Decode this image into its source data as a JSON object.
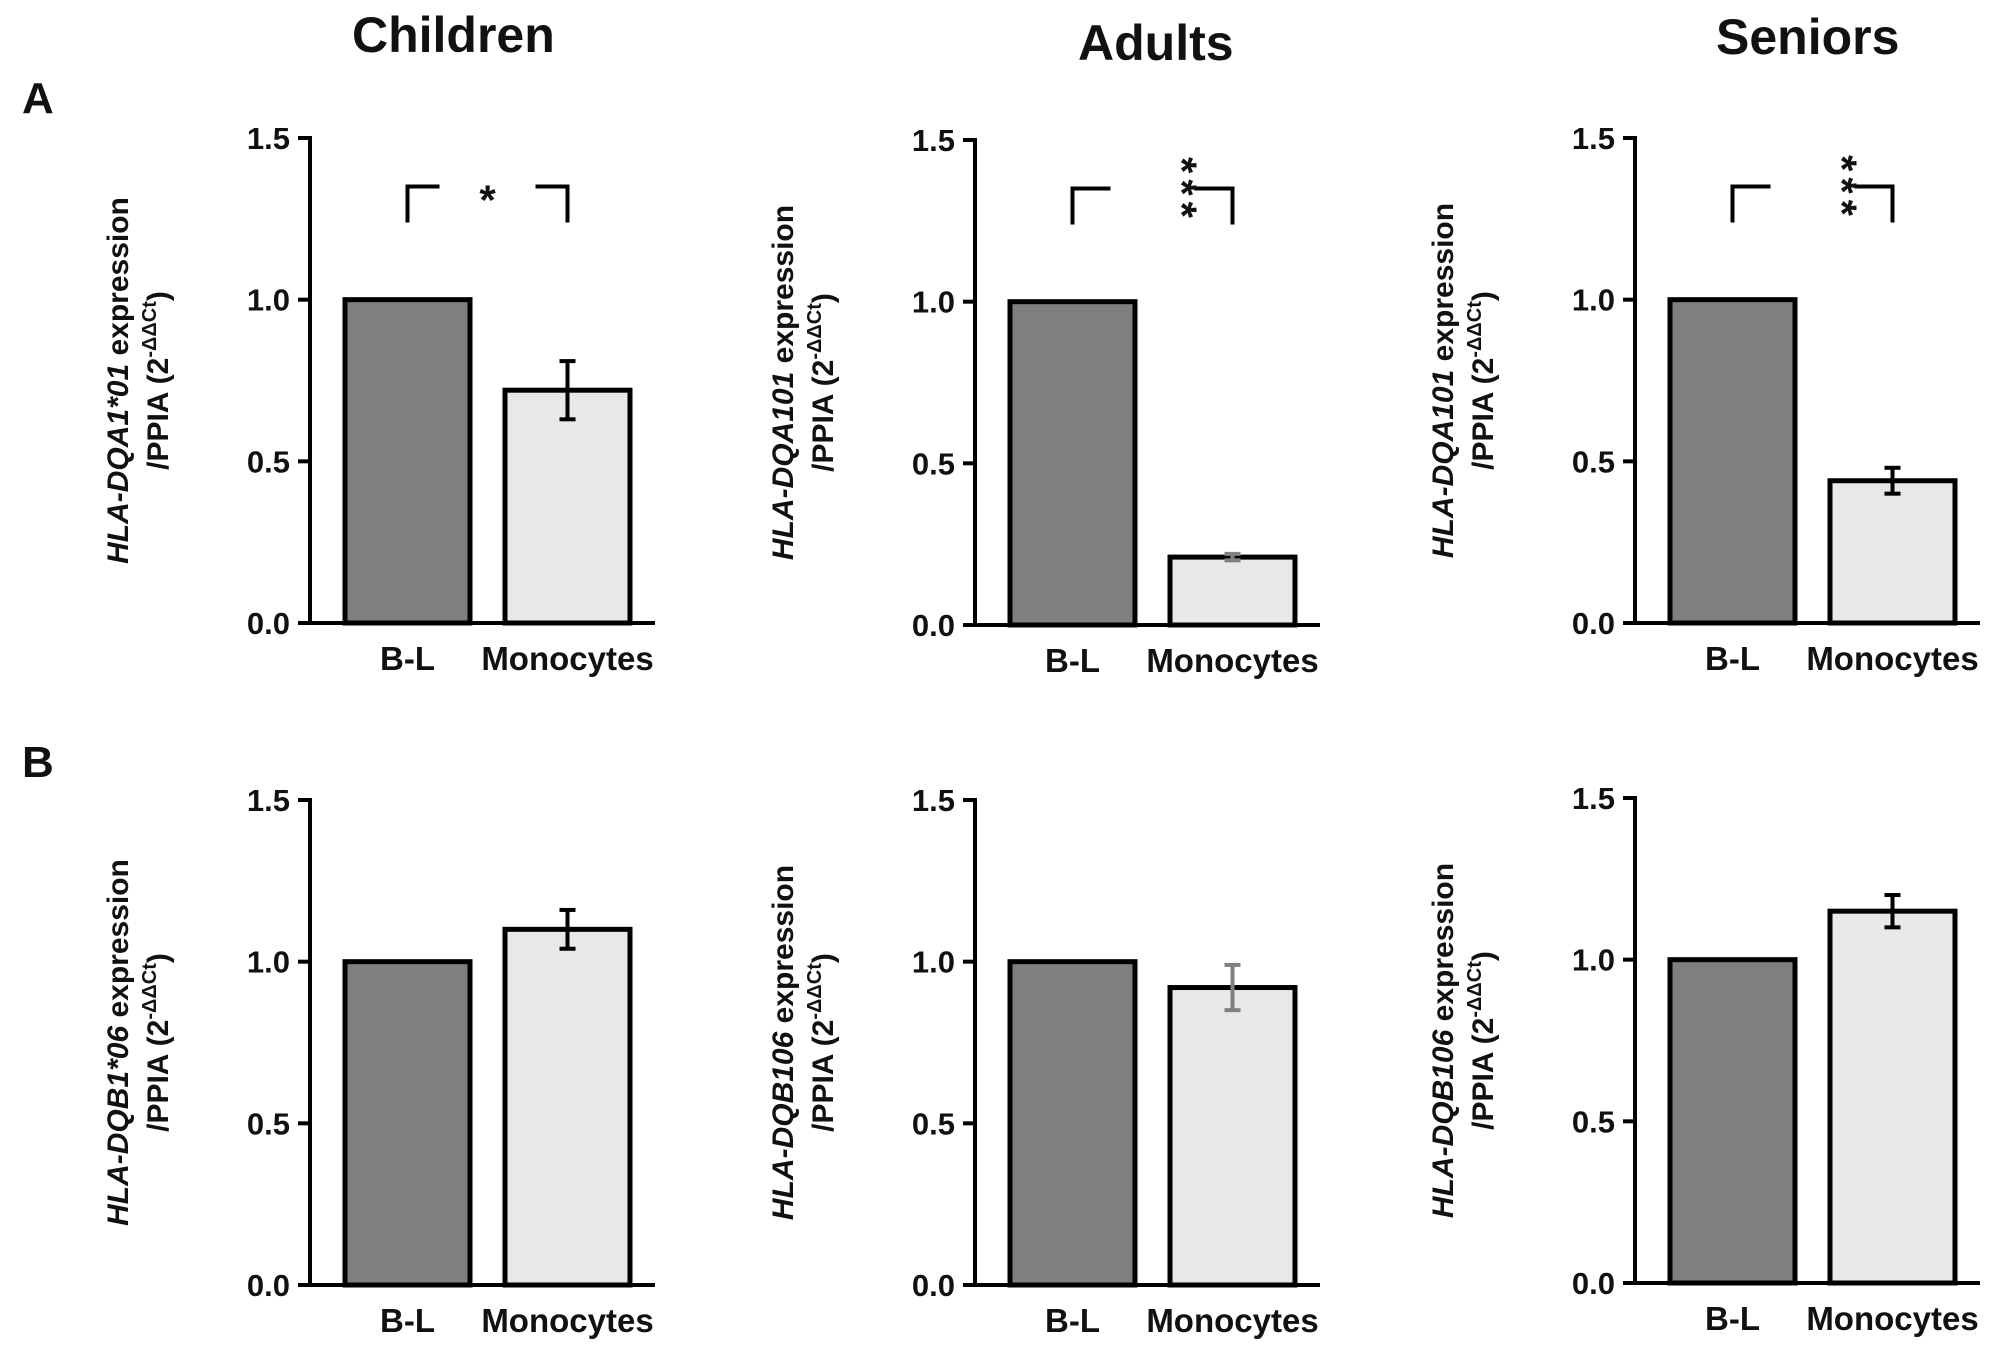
{
  "columns": [
    "Children",
    "Adults",
    "Seniors"
  ],
  "row_labels": [
    "A",
    "B"
  ],
  "colors": {
    "bar_bl": "#7f7f7f",
    "bar_mono": "#e8e8e8",
    "stroke": "#000000",
    "error_gray": "#808080"
  },
  "chart_data": [
    {
      "type": "bar",
      "panel": "A-children",
      "ylabel_gene": "HLA-DQA1*01",
      "ylabel_expr": " expression",
      "ylabel_line2": "/PPIA (2",
      "ylabel_sup": "-ΔΔCt",
      "ylabel_close": ")",
      "categories": [
        "B-L",
        "Monocytes"
      ],
      "values": [
        1.0,
        0.72
      ],
      "errors": [
        0,
        0.09
      ],
      "ylim": [
        0,
        1.5
      ],
      "yticks": [
        "0.0",
        "0.5",
        "1.0",
        "1.5"
      ],
      "significance": "*"
    },
    {
      "type": "bar",
      "panel": "A-adults",
      "ylabel_gene": "HLA-DQA101",
      "ylabel_expr": " expression",
      "ylabel_line2": "/PPIA (2",
      "ylabel_sup": "-ΔΔCt",
      "ylabel_close": ")",
      "categories": [
        "B-L",
        "Monocytes"
      ],
      "values": [
        1.0,
        0.21
      ],
      "errors": [
        0,
        0.01
      ],
      "ylim": [
        0,
        1.5
      ],
      "yticks": [
        "0.0",
        "0.5",
        "1.0",
        "1.5"
      ],
      "significance": "***"
    },
    {
      "type": "bar",
      "panel": "A-seniors",
      "ylabel_gene": "HLA-DQA101",
      "ylabel_expr": " expression",
      "ylabel_line2": "/PPIA (2",
      "ylabel_sup": "-ΔΔCt",
      "ylabel_close": ")",
      "categories": [
        "B-L",
        "Monocytes"
      ],
      "values": [
        1.0,
        0.44
      ],
      "errors": [
        0,
        0.04
      ],
      "ylim": [
        0,
        1.5
      ],
      "yticks": [
        "0.0",
        "0.5",
        "1.0",
        "1.5"
      ],
      "significance": "***"
    },
    {
      "type": "bar",
      "panel": "B-children",
      "ylabel_gene": "HLA-DQB1*06",
      "ylabel_expr": " expression",
      "ylabel_line2": "/PPIA (2",
      "ylabel_sup": "-ΔΔCt",
      "ylabel_close": ")",
      "categories": [
        "B-L",
        "Monocytes"
      ],
      "values": [
        1.0,
        1.1
      ],
      "errors": [
        0,
        0.06
      ],
      "ylim": [
        0,
        1.5
      ],
      "yticks": [
        "0.0",
        "0.5",
        "1.0",
        "1.5"
      ],
      "significance": ""
    },
    {
      "type": "bar",
      "panel": "B-adults",
      "ylabel_gene": "HLA-DQB106",
      "ylabel_expr": " expression",
      "ylabel_line2": "/PPIA (2",
      "ylabel_sup": "-ΔΔCt",
      "ylabel_close": ")",
      "categories": [
        "B-L",
        "Monocytes"
      ],
      "values": [
        1.0,
        0.92
      ],
      "errors": [
        0,
        0.07
      ],
      "ylim": [
        0,
        1.5
      ],
      "yticks": [
        "0.0",
        "0.5",
        "1.0",
        "1.5"
      ],
      "significance": ""
    },
    {
      "type": "bar",
      "panel": "B-seniors",
      "ylabel_gene": "HLA-DQB106",
      "ylabel_expr": " expression",
      "ylabel_line2": "/PPIA (2",
      "ylabel_sup": "-ΔΔCt",
      "ylabel_close": ")",
      "categories": [
        "B-L",
        "Monocytes"
      ],
      "values": [
        1.0,
        1.15
      ],
      "errors": [
        0,
        0.05
      ],
      "ylim": [
        0,
        1.5
      ],
      "yticks": [
        "0.0",
        "0.5",
        "1.0",
        "1.5"
      ],
      "significance": ""
    }
  ]
}
